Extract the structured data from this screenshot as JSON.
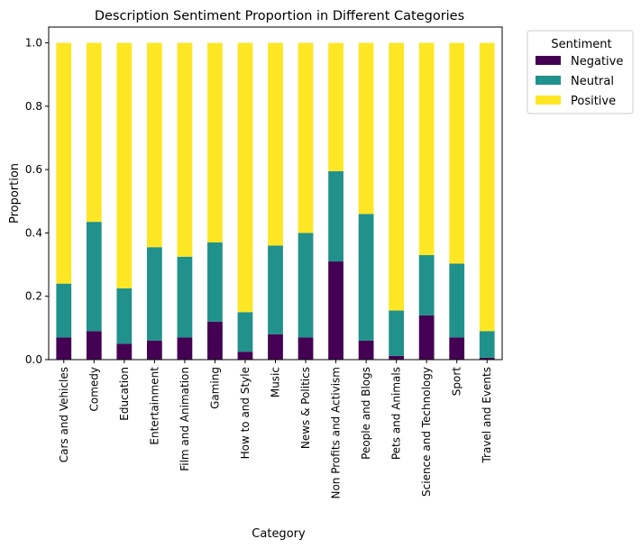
{
  "chart_data": {
    "type": "bar",
    "stacked": true,
    "title": "Description Sentiment Proportion in Different Categories",
    "xlabel": "Category",
    "ylabel": "Proportion",
    "ylim": [
      0,
      1.05
    ],
    "yticks": [
      "0.0",
      "0.2",
      "0.4",
      "0.6",
      "0.8",
      "1.0"
    ],
    "grid": false,
    "legend": {
      "title": "Sentiment",
      "placement": "outside-top-right"
    },
    "categories": [
      "Cars and Vehicles",
      "Comedy",
      "Education",
      "Entertainment",
      "Film and Animation",
      "Gaming",
      "How to and Style",
      "Music",
      "News & Politics",
      "Non Profits and Activism",
      "People and Blogs",
      "Pets and Animals",
      "Science and Technology",
      "Sport",
      "Travel and Events"
    ],
    "series": [
      {
        "name": "Negative",
        "color": "#440154",
        "values": [
          0.07,
          0.09,
          0.05,
          0.06,
          0.07,
          0.12,
          0.025,
          0.08,
          0.07,
          0.31,
          0.06,
          0.012,
          0.14,
          0.07,
          0.006
        ]
      },
      {
        "name": "Neutral",
        "color": "#21918c",
        "values": [
          0.17,
          0.345,
          0.175,
          0.295,
          0.255,
          0.25,
          0.125,
          0.28,
          0.33,
          0.285,
          0.4,
          0.143,
          0.19,
          0.233,
          0.084
        ]
      },
      {
        "name": "Positive",
        "color": "#fde725",
        "values": [
          0.76,
          0.565,
          0.775,
          0.645,
          0.675,
          0.63,
          0.85,
          0.64,
          0.6,
          0.405,
          0.54,
          0.845,
          0.67,
          0.697,
          0.91
        ]
      }
    ]
  }
}
